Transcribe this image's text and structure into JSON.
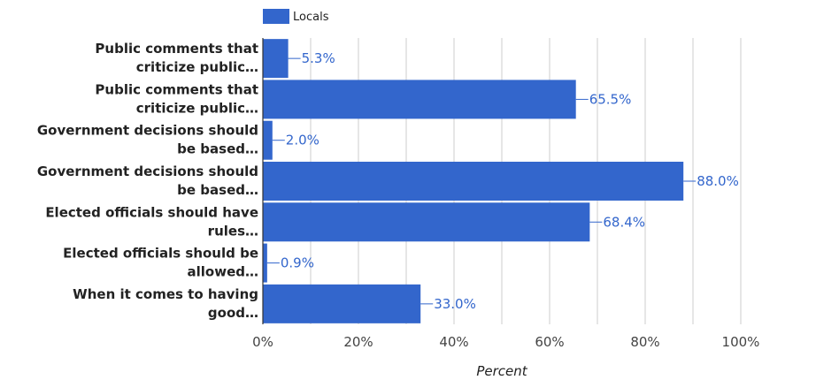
{
  "chart_data": {
    "type": "bar",
    "orientation": "horizontal",
    "categories": [
      [
        "Public comments that",
        "criticize public…"
      ],
      [
        "Public comments that",
        "criticize public…"
      ],
      [
        "Government decisions should",
        "be based…"
      ],
      [
        "Government decisions should",
        "be based…"
      ],
      [
        "Elected officials should have",
        "rules…"
      ],
      [
        "Elected officials should be",
        "allowed…"
      ],
      [
        "When it comes to having",
        "good…"
      ]
    ],
    "series": [
      {
        "name": "Locals",
        "color": "#3366cc",
        "values": [
          5.3,
          65.5,
          2.0,
          88.0,
          68.4,
          0.9,
          33.0
        ],
        "labels": [
          "5.3%",
          "65.5%",
          "2.0%",
          "88.0%",
          "68.4%",
          "0.9%",
          "33.0%"
        ]
      }
    ],
    "xlabel": "Percent",
    "xlim": [
      0,
      100
    ],
    "xticks": [
      0,
      20,
      40,
      60,
      80,
      100
    ],
    "xtick_labels": [
      "0%",
      "20%",
      "40%",
      "60%",
      "80%",
      "100%"
    ],
    "grid": true,
    "legend_position": "top-left"
  }
}
